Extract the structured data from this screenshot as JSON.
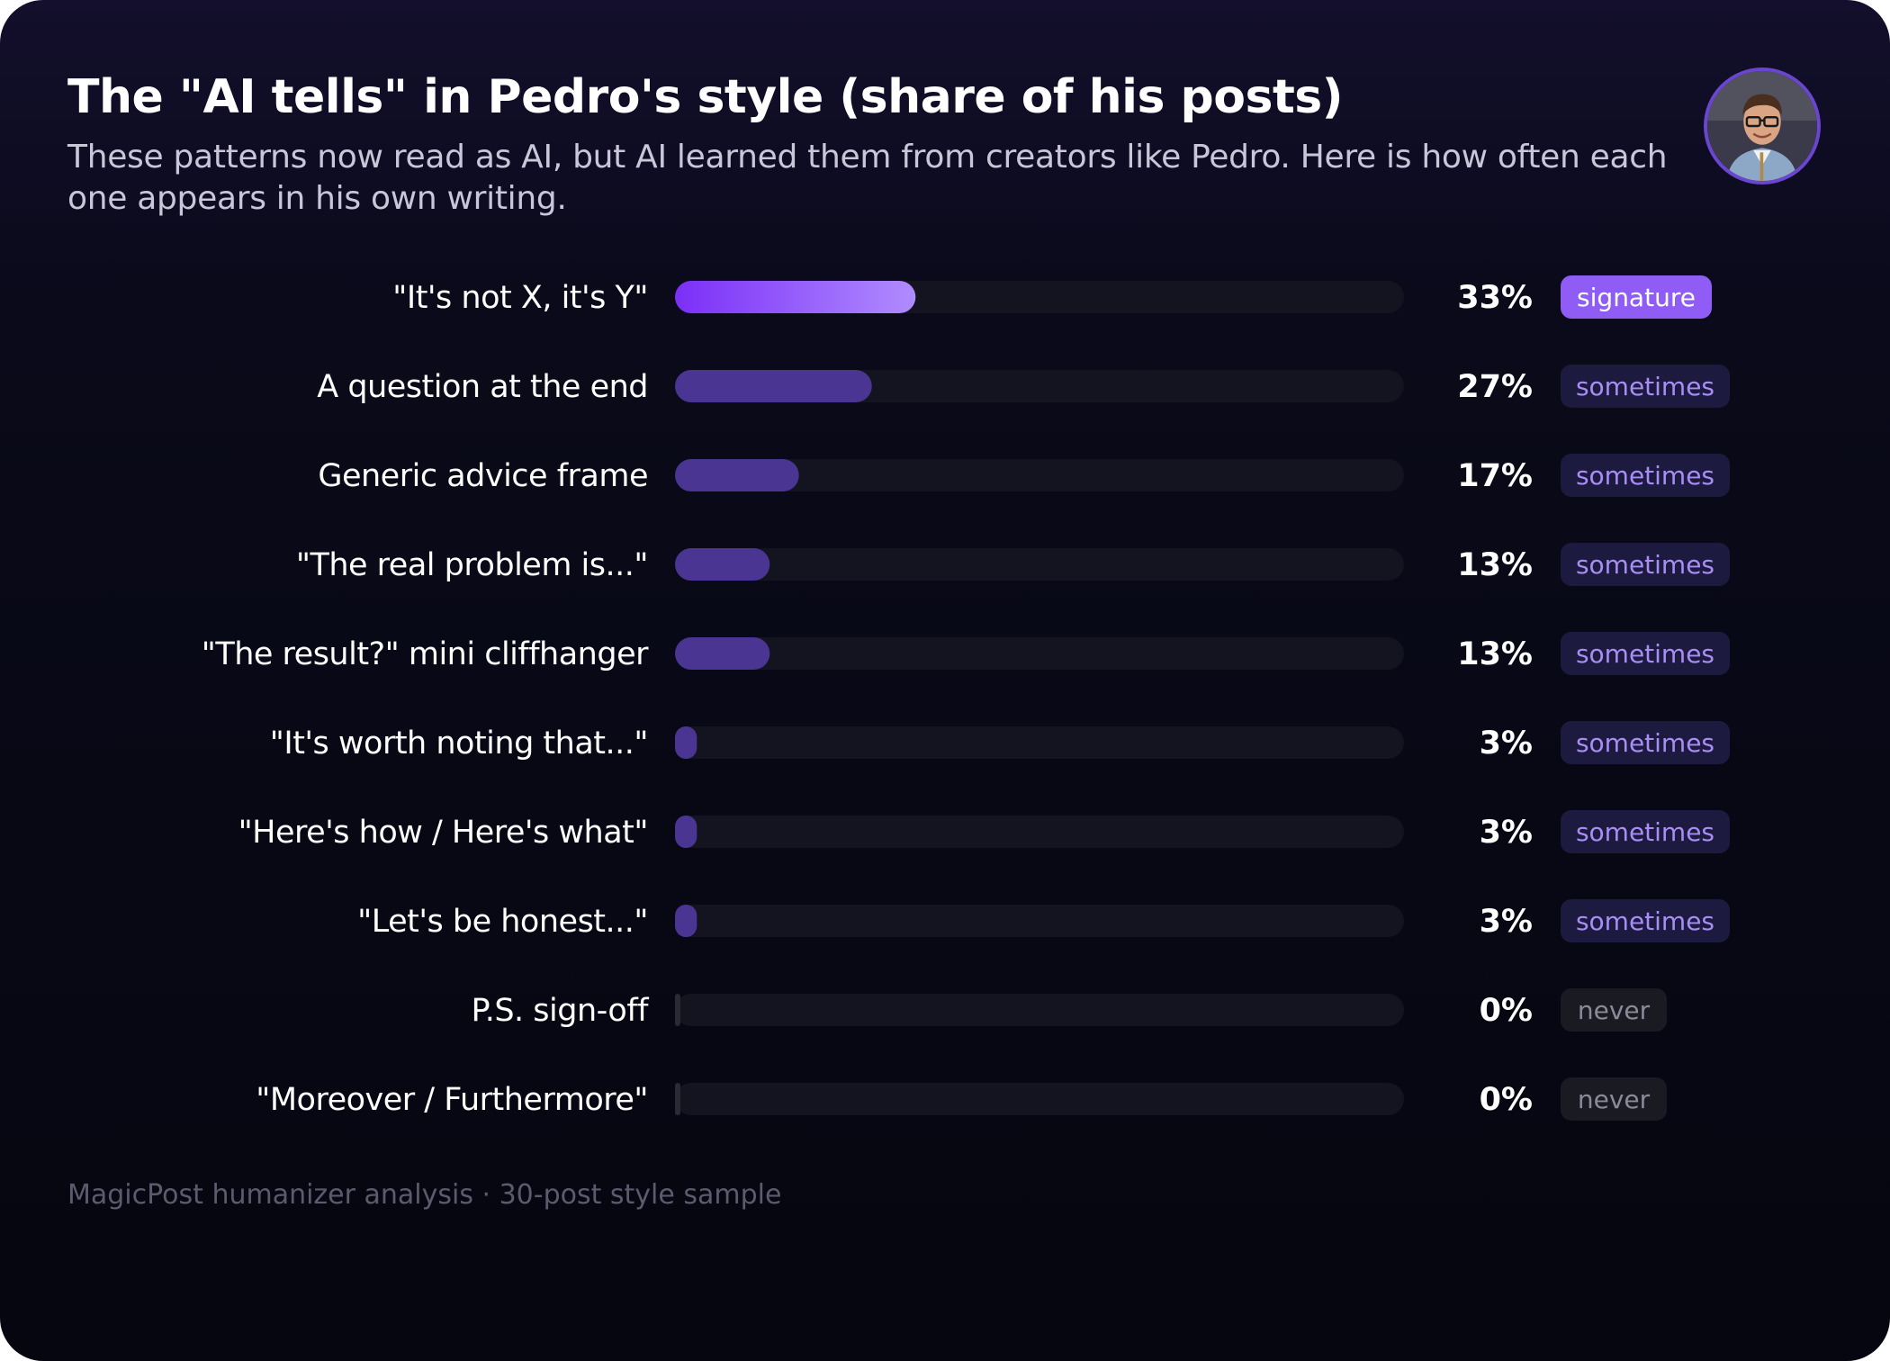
{
  "title": "The \"AI tells\" in Pedro's style (share of his posts)",
  "subtitle": "These patterns now read as AI, but AI learned them from creators like Pedro. Here is how often each one appears in his own writing.",
  "footer": "MagicPost humanizer analysis · 30-post style sample",
  "colors": {
    "signature_fill_start": "#7b2ff7",
    "signature_fill_end": "#b08cff",
    "sometimes_fill": "#4b3592",
    "never_fill": "#2a2a35",
    "track": "#141420",
    "signature_badge_bg": "#8f5cf5",
    "signature_badge_text": "#ffffff",
    "sometimes_badge_bg": "#1d1a3f",
    "sometimes_badge_text": "#a88df5",
    "never_badge_bg": "#1a1a22",
    "never_badge_text": "#8a8a98"
  },
  "avatar": {
    "icon": "person-portrait-icon"
  },
  "chart_data": {
    "type": "bar",
    "orientation": "horizontal",
    "title": "The \"AI tells\" in Pedro's style (share of his posts)",
    "xlim": [
      0,
      100
    ],
    "grid": false,
    "unit": "%",
    "categories": [
      "\"It's not X, it's Y\"",
      "A question at the end",
      "Generic advice frame",
      "\"The real problem is...\"",
      "\"The result?\" mini cliffhanger",
      "\"It's worth noting that...\"",
      "\"Here's how / Here's what\"",
      "\"Let's be honest...\"",
      "P.S. sign-off",
      "\"Moreover / Furthermore\""
    ],
    "values": [
      33,
      27,
      17,
      13,
      13,
      3,
      3,
      3,
      0,
      0
    ],
    "value_labels": [
      "33%",
      "27%",
      "17%",
      "13%",
      "13%",
      "3%",
      "3%",
      "3%",
      "0%",
      "0%"
    ],
    "badges": [
      "signature",
      "sometimes",
      "sometimes",
      "sometimes",
      "sometimes",
      "sometimes",
      "sometimes",
      "sometimes",
      "never",
      "never"
    ]
  }
}
